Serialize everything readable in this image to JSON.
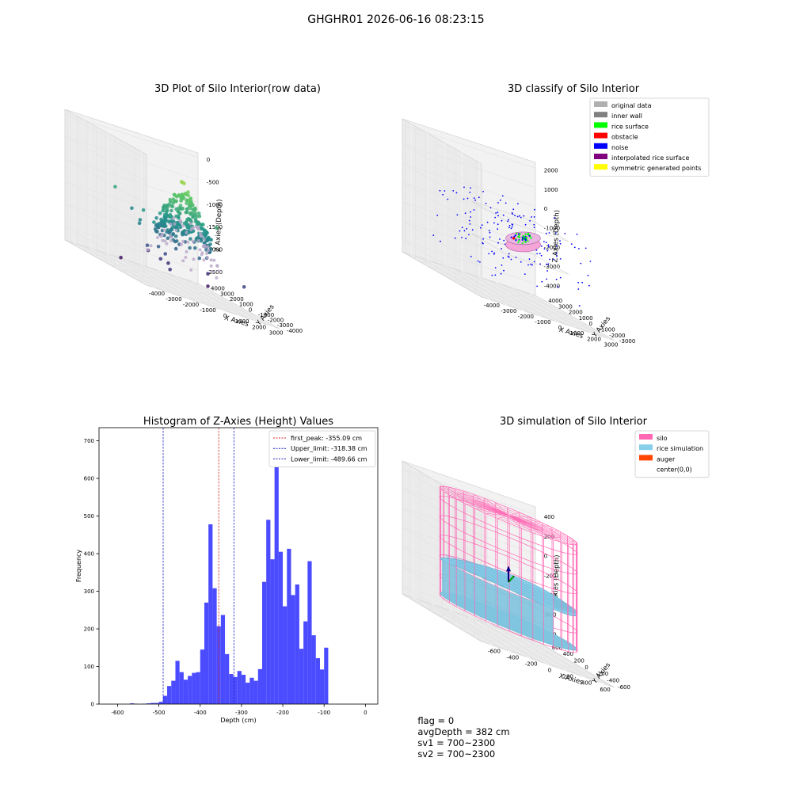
{
  "figure": {
    "suptitle": "GHGHR01 2026-06-16 08:23:15",
    "status": {
      "flag": "flag = 0",
      "avg_depth": "avgDepth = 382 cm",
      "sv1": "sv1 = 700~2300",
      "sv2": "sv2 = 700~2300"
    }
  },
  "colors": {
    "bar": "#4B4BFF",
    "first_peak": "#d62728",
    "limits": "#1f1fbf",
    "silo": "#FF69B4",
    "rice": "#87CEEB",
    "auger": "#FF4500"
  },
  "chart_data": [
    {
      "type": "scatter",
      "subtype": "3d",
      "title": "3D Plot of Silo Interior(row data)",
      "xlabel": "X Axies",
      "ylabel": "Y Axies",
      "zlabel": "Z Axies (Depth)",
      "x_ticks": [
        "-4000",
        "-3000",
        "-2000",
        "-1000",
        "0",
        "1000",
        "2000",
        "3000"
      ],
      "y_ticks": [
        "-4000",
        "-3000",
        "-2000",
        "-1000",
        "0",
        "1000",
        "2000",
        "3000",
        "4000"
      ],
      "z_ticks": [
        "-2500",
        "-2000",
        "-1500",
        "-1000",
        "-500",
        "0"
      ],
      "xlim": [
        -4500,
        3300
      ],
      "ylim": [
        -4300,
        4300
      ],
      "zlim": [
        -2800,
        100
      ],
      "colormap": "viridis"
    },
    {
      "type": "scatter",
      "subtype": "3d",
      "title": "3D classify of Silo Interior",
      "xlabel": "X Axies",
      "ylabel": "Y Axies",
      "zlabel": "Z Axies (Depth)",
      "x_ticks": [
        "-4000",
        "-3000",
        "-2000",
        "-1000",
        "0",
        "1000",
        "2000",
        "3000"
      ],
      "y_ticks": [
        "-3000",
        "-2000",
        "-1000",
        "0",
        "1000",
        "2000",
        "3000",
        "4000"
      ],
      "z_ticks": [
        "-4000",
        "-3000",
        "-2000",
        "-1000",
        "0",
        "1000",
        "2000"
      ],
      "xlim": [
        -4500,
        3300
      ],
      "ylim": [
        -3500,
        4300
      ],
      "zlim": [
        -4600,
        2300
      ],
      "legend_position": "upper-right",
      "legend": [
        {
          "label": "original data",
          "color": "#b0b0b0"
        },
        {
          "label": "inner wall",
          "color": "#808080"
        },
        {
          "label": "rice surface",
          "color": "#00ff00"
        },
        {
          "label": "obstacle",
          "color": "#ff0000"
        },
        {
          "label": "noise",
          "color": "#0000ff"
        },
        {
          "label": "interpolated rice surface",
          "color": "#800080"
        },
        {
          "label": "symmetric generated points",
          "color": "#ffff00"
        }
      ]
    },
    {
      "type": "bar",
      "subtype": "histogram",
      "title": "Histogram of Z-Axies (Height) Values",
      "xlabel": "Depth (cm)",
      "ylabel": "Frequency",
      "x_ticks": [
        -600,
        -500,
        -400,
        -300,
        -200,
        -100,
        0
      ],
      "y_ticks": [
        0,
        100,
        200,
        300,
        400,
        500,
        600,
        700
      ],
      "xlim": [
        -645,
        30
      ],
      "ylim": [
        0,
        735
      ],
      "bin_width": 10,
      "bin_start": -600,
      "values": [
        0,
        0,
        0,
        2,
        1,
        0,
        1,
        2,
        3,
        3,
        6,
        22,
        48,
        62,
        115,
        85,
        65,
        75,
        83,
        85,
        145,
        270,
        478,
        308,
        207,
        237,
        133,
        80,
        72,
        88,
        78,
        57,
        70,
        62,
        93,
        325,
        490,
        385,
        685,
        405,
        260,
        413,
        290,
        318,
        147,
        220,
        380,
        183,
        122,
        92,
        150
      ],
      "legend_position": "upper-right",
      "legend": [
        {
          "label": "first_peak: -355.09 cm",
          "style": "dashed",
          "color": "#d62728"
        },
        {
          "label": "Upper_limit: -318.38 cm",
          "style": "dashed",
          "color": "#1f1fbf"
        },
        {
          "label": "Lower_limit: -489.66 cm",
          "style": "dashed",
          "color": "#1f1fbf"
        }
      ],
      "vlines": [
        {
          "x": -355.09,
          "color": "#d62728"
        },
        {
          "x": -318.38,
          "color": "#1f1fbf"
        },
        {
          "x": -489.66,
          "color": "#1f1fbf"
        }
      ]
    },
    {
      "type": "area",
      "subtype": "3d-surface",
      "title": "3D simulation of Silo Interior",
      "xlabel": "X Axies",
      "ylabel": "Y Axies",
      "zlabel": "Z Axies (Depth)",
      "x_ticks": [
        "-600",
        "-400",
        "-200",
        "0",
        "200",
        "400",
        "600"
      ],
      "y_ticks": [
        "-600",
        "-400",
        "-200",
        "0",
        "200",
        "400",
        "600"
      ],
      "z_ticks": [
        "-800",
        "-600",
        "-400",
        "-200",
        "0",
        "200",
        "400"
      ],
      "xlim": [
        -720,
        720
      ],
      "ylim": [
        -720,
        720
      ],
      "zlim": [
        -880,
        480
      ],
      "legend_position": "upper-right",
      "legend": [
        {
          "label": "silo",
          "color": "#FF69B4"
        },
        {
          "label": "rice simulation",
          "color": "#87CEEB"
        },
        {
          "label": "auger",
          "color": "#FF4500"
        },
        {
          "label": "center(0,0)",
          "color": ""
        }
      ]
    }
  ]
}
